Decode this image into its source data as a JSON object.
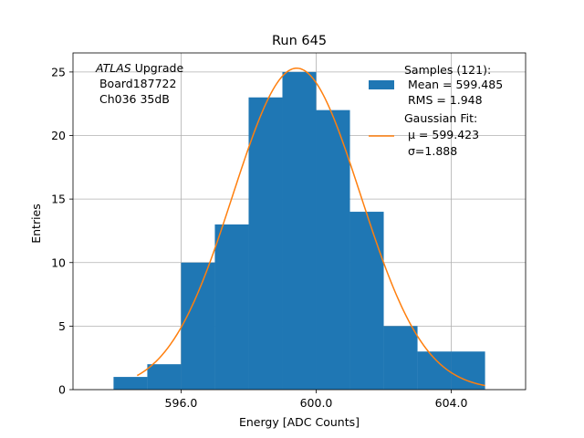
{
  "colors": {
    "bar": "#1f77b4",
    "fit": "#ff7f0e",
    "grid": "#b0b0b0"
  },
  "chart_data": {
    "type": "bar",
    "title": "Run 645",
    "xlabel": "Energy [ADC Counts]",
    "ylabel": "Entries",
    "xlim": [
      592.8,
      606.2
    ],
    "ylim": [
      0,
      26.5
    ],
    "grid": true,
    "x_ticks": [
      596,
      600,
      604
    ],
    "x_tick_labels": [
      "596.0",
      "600.0",
      "604.0"
    ],
    "y_ticks": [
      0,
      5,
      10,
      15,
      20,
      25
    ],
    "y_tick_labels": [
      "0",
      "5",
      "10",
      "15",
      "20",
      "25"
    ],
    "bin_edges": [
      594,
      595,
      596,
      597,
      598,
      599,
      600,
      601,
      602,
      603,
      604,
      605
    ],
    "values": [
      1,
      2,
      10,
      13,
      23,
      25,
      22,
      14,
      5,
      3,
      3
    ],
    "fit": {
      "mu": 599.423,
      "sigma": 1.888,
      "x_range": [
        594.7,
        605.0
      ],
      "peak": 25.3
    },
    "annotation": {
      "italic": "ATLAS",
      "rest": " Upgrade",
      "lines": [
        " Board187722",
        " Ch036 35dB"
      ]
    },
    "legend": {
      "position": "top-right",
      "samples": [
        "Samples (121):",
        " Mean = 599.485",
        " RMS = 1.948"
      ],
      "fit_lines": [
        "Gaussian Fit:",
        "μ = 599.423",
        "σ=1.888"
      ]
    }
  }
}
